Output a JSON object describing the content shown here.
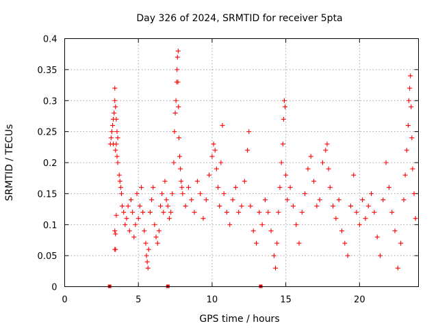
{
  "chart_data": {
    "type": "scatter",
    "title": "Day 326 of 2024, SRMTID for receiver 5pta",
    "xlabel": "GPS time / hours",
    "ylabel": "SRMTID / TECUs",
    "xlim": [
      0,
      24
    ],
    "ylim": [
      0,
      0.4
    ],
    "x_ticks": [
      0,
      5,
      10,
      15,
      20
    ],
    "x_tick_labels": [
      "0",
      "5",
      "10",
      "15",
      "20"
    ],
    "y_ticks": [
      0,
      0.05,
      0.1,
      0.15,
      0.2,
      0.25,
      0.3,
      0.35,
      0.4
    ],
    "y_tick_labels": [
      "0",
      "0.05",
      "0.1",
      "0.15",
      "0.2",
      "0.25",
      "0.3",
      "0.35",
      "0.4"
    ],
    "grid": true,
    "marker": "plus",
    "color": "#ff0000",
    "data_gap_markers_x": [
      3.05,
      7.0,
      13.3
    ],
    "series": [
      {
        "name": "SRMTID",
        "points": [
          [
            3.1,
            0.23
          ],
          [
            3.15,
            0.24
          ],
          [
            3.2,
            0.25
          ],
          [
            3.25,
            0.26
          ],
          [
            3.3,
            0.27
          ],
          [
            3.35,
            0.28
          ],
          [
            3.4,
            0.3
          ],
          [
            3.45,
            0.29
          ],
          [
            3.5,
            0.27
          ],
          [
            3.55,
            0.25
          ],
          [
            3.6,
            0.24
          ],
          [
            3.4,
            0.32
          ],
          [
            3.3,
            0.23
          ],
          [
            3.45,
            0.22
          ],
          [
            3.5,
            0.23
          ],
          [
            3.55,
            0.21
          ],
          [
            3.6,
            0.2
          ],
          [
            3.7,
            0.18
          ],
          [
            3.75,
            0.17
          ],
          [
            3.8,
            0.16
          ],
          [
            3.85,
            0.15
          ],
          [
            3.9,
            0.13
          ],
          [
            3.4,
            0.06
          ],
          [
            3.45,
            0.06
          ],
          [
            3.4,
            0.09
          ],
          [
            3.45,
            0.085
          ],
          [
            3.5,
            0.115
          ],
          [
            4.0,
            0.12
          ],
          [
            4.1,
            0.1
          ],
          [
            4.2,
            0.11
          ],
          [
            4.3,
            0.13
          ],
          [
            4.4,
            0.09
          ],
          [
            4.5,
            0.14
          ],
          [
            4.6,
            0.12
          ],
          [
            4.7,
            0.08
          ],
          [
            4.8,
            0.1
          ],
          [
            4.9,
            0.15
          ],
          [
            5.0,
            0.11
          ],
          [
            5.1,
            0.13
          ],
          [
            5.2,
            0.16
          ],
          [
            5.3,
            0.12
          ],
          [
            5.4,
            0.09
          ],
          [
            5.5,
            0.07
          ],
          [
            5.55,
            0.05
          ],
          [
            5.6,
            0.04
          ],
          [
            5.65,
            0.03
          ],
          [
            5.7,
            0.06
          ],
          [
            5.8,
            0.12
          ],
          [
            5.9,
            0.14
          ],
          [
            6.0,
            0.16
          ],
          [
            6.1,
            0.1
          ],
          [
            6.2,
            0.08
          ],
          [
            6.3,
            0.07
          ],
          [
            6.4,
            0.09
          ],
          [
            6.5,
            0.13
          ],
          [
            6.6,
            0.15
          ],
          [
            6.7,
            0.12
          ],
          [
            6.8,
            0.17
          ],
          [
            6.9,
            0.14
          ],
          [
            7.0,
            0.13
          ],
          [
            7.1,
            0.11
          ],
          [
            7.2,
            0.12
          ],
          [
            7.3,
            0.15
          ],
          [
            7.4,
            0.2
          ],
          [
            7.45,
            0.25
          ],
          [
            7.5,
            0.28
          ],
          [
            7.55,
            0.3
          ],
          [
            7.6,
            0.33
          ],
          [
            7.62,
            0.35
          ],
          [
            7.65,
            0.37
          ],
          [
            7.7,
            0.38
          ],
          [
            7.68,
            0.33
          ],
          [
            7.72,
            0.29
          ],
          [
            7.75,
            0.24
          ],
          [
            7.8,
            0.21
          ],
          [
            7.85,
            0.19
          ],
          [
            7.9,
            0.17
          ],
          [
            7.95,
            0.16
          ],
          [
            8.0,
            0.15
          ],
          [
            8.2,
            0.13
          ],
          [
            8.4,
            0.16
          ],
          [
            8.6,
            0.14
          ],
          [
            8.8,
            0.12
          ],
          [
            9.0,
            0.17
          ],
          [
            9.2,
            0.15
          ],
          [
            9.4,
            0.11
          ],
          [
            9.6,
            0.14
          ],
          [
            9.8,
            0.18
          ],
          [
            10.0,
            0.21
          ],
          [
            10.1,
            0.23
          ],
          [
            10.2,
            0.22
          ],
          [
            10.3,
            0.19
          ],
          [
            10.4,
            0.16
          ],
          [
            10.5,
            0.13
          ],
          [
            10.6,
            0.2
          ],
          [
            10.7,
            0.26
          ],
          [
            10.8,
            0.15
          ],
          [
            11.0,
            0.12
          ],
          [
            11.2,
            0.1
          ],
          [
            11.4,
            0.14
          ],
          [
            11.6,
            0.16
          ],
          [
            11.8,
            0.12
          ],
          [
            12.0,
            0.13
          ],
          [
            12.2,
            0.17
          ],
          [
            12.4,
            0.22
          ],
          [
            12.5,
            0.25
          ],
          [
            12.6,
            0.13
          ],
          [
            12.8,
            0.09
          ],
          [
            13.0,
            0.07
          ],
          [
            13.2,
            0.12
          ],
          [
            13.4,
            0.1
          ],
          [
            13.6,
            0.14
          ],
          [
            13.8,
            0.12
          ],
          [
            14.0,
            0.09
          ],
          [
            14.2,
            0.05
          ],
          [
            14.3,
            0.03
          ],
          [
            14.4,
            0.07
          ],
          [
            14.5,
            0.12
          ],
          [
            14.6,
            0.16
          ],
          [
            14.7,
            0.2
          ],
          [
            14.8,
            0.23
          ],
          [
            14.85,
            0.27
          ],
          [
            14.9,
            0.3
          ],
          [
            14.95,
            0.29
          ],
          [
            15.0,
            0.18
          ],
          [
            15.1,
            0.14
          ],
          [
            15.3,
            0.16
          ],
          [
            15.5,
            0.13
          ],
          [
            15.7,
            0.1
          ],
          [
            15.9,
            0.07
          ],
          [
            16.1,
            0.12
          ],
          [
            16.3,
            0.15
          ],
          [
            16.5,
            0.19
          ],
          [
            16.7,
            0.21
          ],
          [
            16.9,
            0.17
          ],
          [
            17.1,
            0.13
          ],
          [
            17.3,
            0.14
          ],
          [
            17.5,
            0.2
          ],
          [
            17.7,
            0.22
          ],
          [
            17.8,
            0.23
          ],
          [
            17.9,
            0.19
          ],
          [
            18.0,
            0.16
          ],
          [
            18.2,
            0.13
          ],
          [
            18.4,
            0.11
          ],
          [
            18.6,
            0.14
          ],
          [
            18.8,
            0.09
          ],
          [
            19.0,
            0.07
          ],
          [
            19.2,
            0.05
          ],
          [
            19.4,
            0.13
          ],
          [
            19.6,
            0.18
          ],
          [
            19.8,
            0.12
          ],
          [
            20.0,
            0.1
          ],
          [
            20.2,
            0.14
          ],
          [
            20.4,
            0.11
          ],
          [
            20.6,
            0.13
          ],
          [
            20.8,
            0.15
          ],
          [
            21.0,
            0.12
          ],
          [
            21.2,
            0.08
          ],
          [
            21.4,
            0.05
          ],
          [
            21.6,
            0.14
          ],
          [
            21.8,
            0.2
          ],
          [
            22.0,
            0.16
          ],
          [
            22.2,
            0.12
          ],
          [
            22.4,
            0.09
          ],
          [
            22.6,
            0.03
          ],
          [
            22.8,
            0.07
          ],
          [
            23.0,
            0.14
          ],
          [
            23.1,
            0.18
          ],
          [
            23.2,
            0.22
          ],
          [
            23.3,
            0.26
          ],
          [
            23.35,
            0.3
          ],
          [
            23.4,
            0.32
          ],
          [
            23.45,
            0.34
          ],
          [
            23.5,
            0.29
          ],
          [
            23.55,
            0.24
          ],
          [
            23.6,
            0.19
          ],
          [
            23.7,
            0.15
          ],
          [
            23.8,
            0.11
          ]
        ]
      }
    ]
  }
}
